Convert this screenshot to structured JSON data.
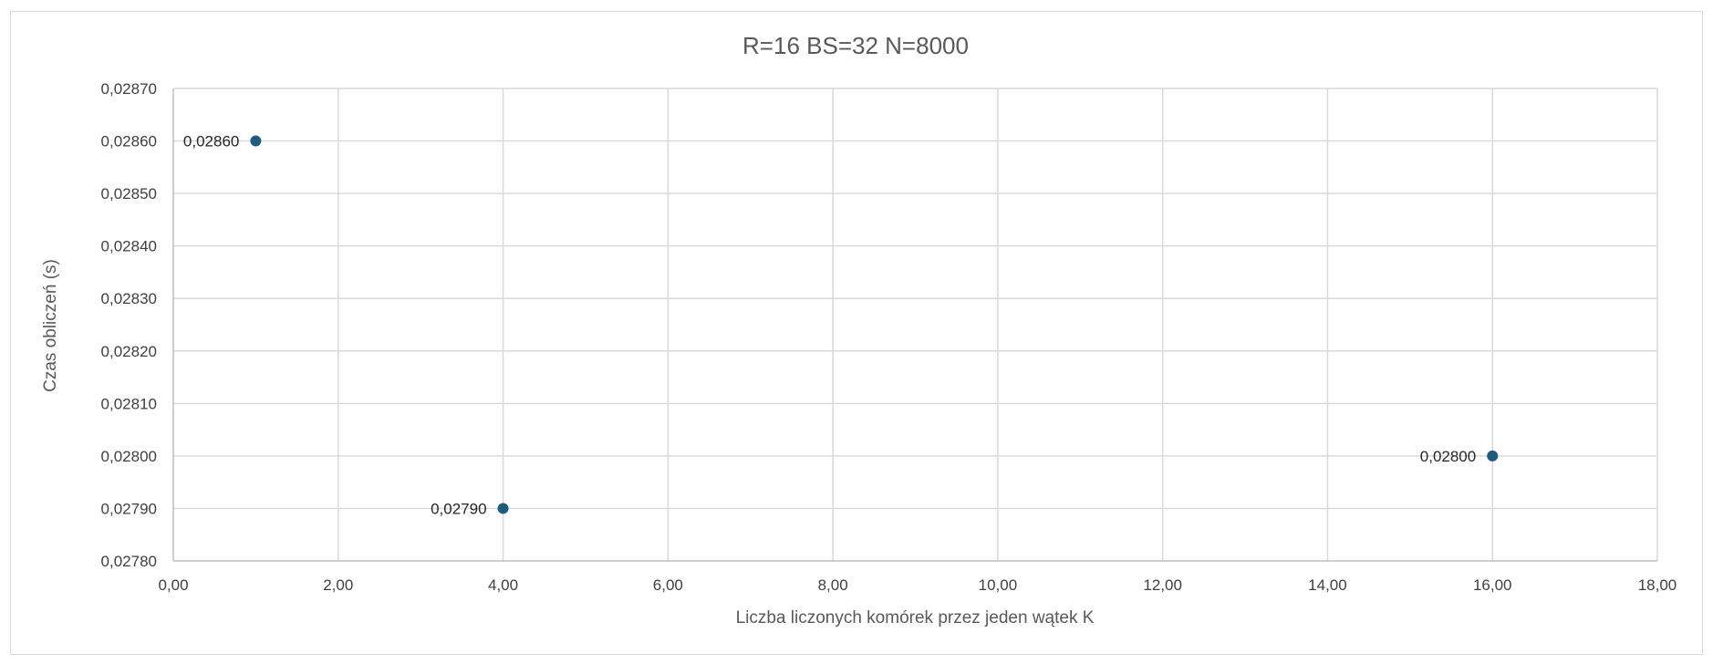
{
  "chart_data": {
    "type": "scatter",
    "title": "R=16 BS=32 N=8000",
    "xlabel": "Liczba liczonych komórek przez jeden wątek K",
    "ylabel": "Czas obliczeń (s)",
    "xlim": [
      0,
      18
    ],
    "ylim": [
      0.0278,
      0.0287
    ],
    "x_ticks": [
      "0,00",
      "2,00",
      "4,00",
      "6,00",
      "8,00",
      "10,00",
      "12,00",
      "14,00",
      "16,00",
      "18,00"
    ],
    "y_ticks": [
      "0,02780",
      "0,02790",
      "0,02800",
      "0,02810",
      "0,02820",
      "0,02830",
      "0,02840",
      "0,02850",
      "0,02860",
      "0,02870"
    ],
    "grid": true,
    "legend": "none",
    "series": [
      {
        "color": "#1f5b7c",
        "points": [
          {
            "x": 1,
            "y": 0.0286,
            "label": "0,02860"
          },
          {
            "x": 4,
            "y": 0.0279,
            "label": "0,02790"
          },
          {
            "x": 16,
            "y": 0.028,
            "label": "0,02800"
          }
        ]
      }
    ]
  }
}
